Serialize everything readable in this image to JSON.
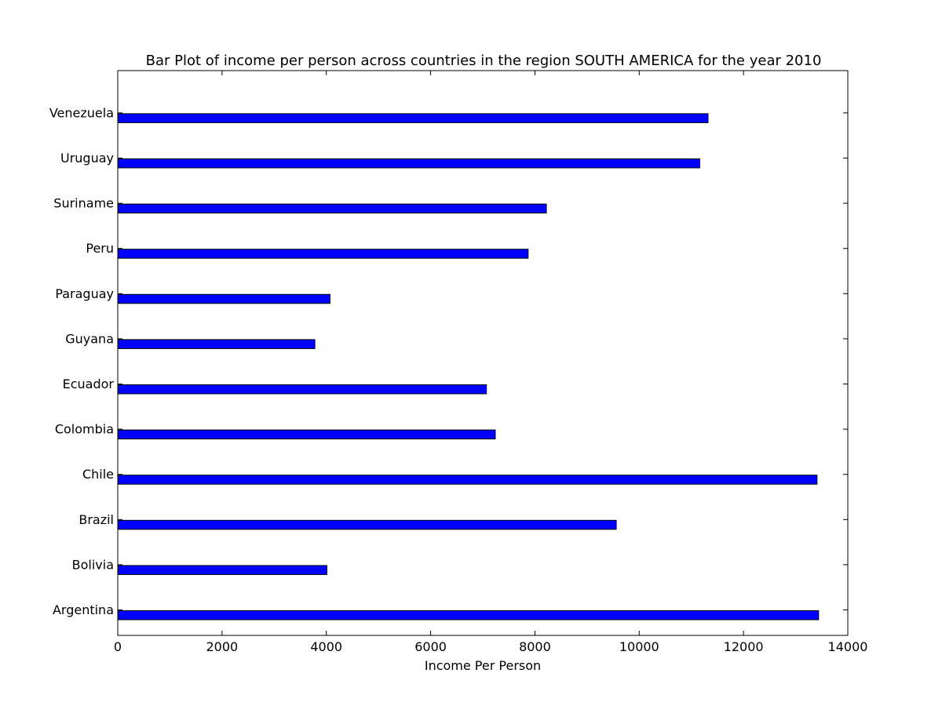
{
  "chart_data": {
    "type": "bar",
    "orientation": "horizontal",
    "title": "Bar Plot of income per person across countries in the region SOUTH AMERICA for the year 2010",
    "xlabel": "Income Per Person",
    "ylabel": "",
    "xlim": [
      0,
      14000
    ],
    "x_ticks": [
      0,
      2000,
      4000,
      6000,
      8000,
      10000,
      12000,
      14000
    ],
    "grid": false,
    "bar_color": "#0000ff",
    "edge_color": "#000000",
    "categories": [
      "Argentina",
      "Bolivia",
      "Brazil",
      "Chile",
      "Colombia",
      "Ecuador",
      "Guyana",
      "Paraguay",
      "Peru",
      "Suriname",
      "Uruguay",
      "Venezuela"
    ],
    "values": [
      13440,
      4010,
      9560,
      13410,
      7240,
      7070,
      3780,
      4070,
      7870,
      8220,
      11160,
      11320
    ]
  }
}
